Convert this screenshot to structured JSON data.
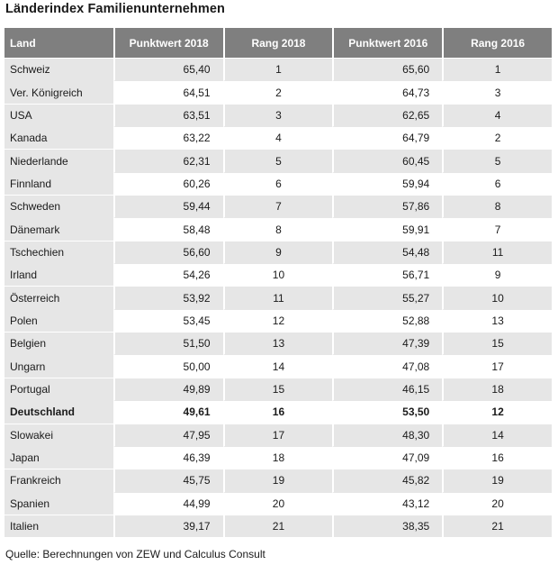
{
  "title": "Länderindex Familienunternehmen",
  "table": {
    "headers": [
      "Land",
      "Punktwert 2018",
      "Rang 2018",
      "Punktwert 2016",
      "Rang 2016"
    ],
    "rows": [
      {
        "land": "Schweiz",
        "pw2018": "65,40",
        "rang2018": "1",
        "pw2016": "65,60",
        "rang2016": "1"
      },
      {
        "land": "Ver. Königreich",
        "pw2018": "64,51",
        "rang2018": "2",
        "pw2016": "64,73",
        "rang2016": "3"
      },
      {
        "land": "USA",
        "pw2018": "63,51",
        "rang2018": "3",
        "pw2016": "62,65",
        "rang2016": "4"
      },
      {
        "land": "Kanada",
        "pw2018": "63,22",
        "rang2018": "4",
        "pw2016": "64,79",
        "rang2016": "2"
      },
      {
        "land": "Niederlande",
        "pw2018": "62,31",
        "rang2018": "5",
        "pw2016": "60,45",
        "rang2016": "5"
      },
      {
        "land": "Finnland",
        "pw2018": "60,26",
        "rang2018": "6",
        "pw2016": "59,94",
        "rang2016": "6"
      },
      {
        "land": "Schweden",
        "pw2018": "59,44",
        "rang2018": "7",
        "pw2016": "57,86",
        "rang2016": "8"
      },
      {
        "land": "Dänemark",
        "pw2018": "58,48",
        "rang2018": "8",
        "pw2016": "59,91",
        "rang2016": "7"
      },
      {
        "land": "Tschechien",
        "pw2018": "56,60",
        "rang2018": "9",
        "pw2016": "54,48",
        "rang2016": "11"
      },
      {
        "land": "Irland",
        "pw2018": "54,26",
        "rang2018": "10",
        "pw2016": "56,71",
        "rang2016": "9"
      },
      {
        "land": "Österreich",
        "pw2018": "53,92",
        "rang2018": "11",
        "pw2016": "55,27",
        "rang2016": "10"
      },
      {
        "land": "Polen",
        "pw2018": "53,45",
        "rang2018": "12",
        "pw2016": "52,88",
        "rang2016": "13"
      },
      {
        "land": "Belgien",
        "pw2018": "51,50",
        "rang2018": "13",
        "pw2016": "47,39",
        "rang2016": "15"
      },
      {
        "land": "Ungarn",
        "pw2018": "50,00",
        "rang2018": "14",
        "pw2016": "47,08",
        "rang2016": "17"
      },
      {
        "land": "Portugal",
        "pw2018": "49,89",
        "rang2018": "15",
        "pw2016": "46,15",
        "rang2016": "18"
      },
      {
        "land": "Deutschland",
        "pw2018": "49,61",
        "rang2018": "16",
        "pw2016": "53,50",
        "rang2016": "12",
        "highlight": true
      },
      {
        "land": "Slowakei",
        "pw2018": "47,95",
        "rang2018": "17",
        "pw2016": "48,30",
        "rang2016": "14"
      },
      {
        "land": "Japan",
        "pw2018": "46,39",
        "rang2018": "18",
        "pw2016": "47,09",
        "rang2016": "16"
      },
      {
        "land": "Frankreich",
        "pw2018": "45,75",
        "rang2018": "19",
        "pw2016": "45,82",
        "rang2016": "19"
      },
      {
        "land": "Spanien",
        "pw2018": "44,99",
        "rang2018": "20",
        "pw2016": "43,12",
        "rang2016": "20"
      },
      {
        "land": "Italien",
        "pw2018": "39,17",
        "rang2018": "21",
        "pw2016": "38,35",
        "rang2016": "21"
      }
    ]
  },
  "source": "Quelle: Berechnungen von ZEW und Calculus Consult",
  "colors": {
    "header_bg": "#7f7f7f",
    "row_shade": "#e6e6e6",
    "row_plain": "#ffffff"
  }
}
